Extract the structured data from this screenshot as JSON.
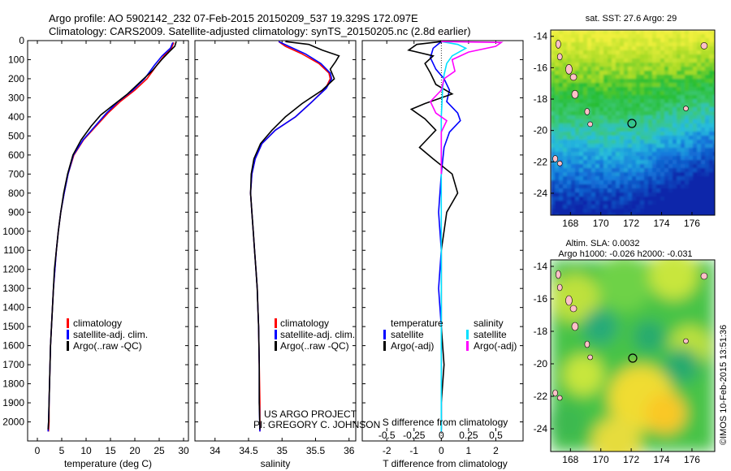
{
  "header": {
    "title_line1": "Argo profile: AO 5902142_232 07-Feb-2015 20150209_537 19.329S 172.097E",
    "title_line2": "Climatology: CARS2009. Satellite-adjusted climatology: synTS_20150205.nc (2.8d earlier)"
  },
  "side_texts": {
    "sst_label": "sat. SST: 27.6 Argo: 29",
    "sla_label1": "Altim. SLA: 0.0032",
    "sla_label2": "Argo h1000: -0.026 h2000: -0.031",
    "credit": "©IMOS 10-Feb-2015 13:51:36",
    "project_line1": "US ARGO PROJECT",
    "project_line2": "PI: GREGORY C. JOHNSON"
  },
  "colors": {
    "climatology": "#ff0000",
    "satellite": "#0000ff",
    "argo": "#000000",
    "salinity_satellite": "#00e0ff",
    "salinity_argo": "#ff00ff"
  },
  "chart_data": [
    {
      "type": "line",
      "xlabel": "temperature (deg C)",
      "ylabel": "",
      "xlim": [
        -2,
        31
      ],
      "ylim": [
        2100,
        0
      ],
      "xticks": [
        0,
        5,
        10,
        15,
        20,
        25,
        30
      ],
      "yticks": [
        0,
        100,
        200,
        300,
        400,
        500,
        600,
        700,
        800,
        900,
        1000,
        1100,
        1200,
        1300,
        1400,
        1500,
        1600,
        1700,
        1800,
        1900,
        2000
      ],
      "legend": [
        "climatology",
        "satellite-adj. clim.",
        "Argo(..raw -QC)"
      ],
      "series": [
        {
          "name": "climatology",
          "points": [
            [
              28,
              10
            ],
            [
              27.5,
              40
            ],
            [
              26,
              80
            ],
            [
              24.5,
              130
            ],
            [
              22.5,
              200
            ],
            [
              20,
              260
            ],
            [
              17,
              320
            ],
            [
              14.5,
              380
            ],
            [
              12,
              450
            ],
            [
              9.5,
              520
            ],
            [
              7.5,
              600
            ],
            [
              6.3,
              700
            ],
            [
              5.5,
              800
            ],
            [
              4.8,
              900
            ],
            [
              4.3,
              1000
            ],
            [
              3.9,
              1100
            ],
            [
              3.6,
              1200
            ],
            [
              3.3,
              1300
            ],
            [
              3.1,
              1400
            ],
            [
              2.9,
              1500
            ],
            [
              2.7,
              1600
            ],
            [
              2.6,
              1700
            ],
            [
              2.5,
              1800
            ],
            [
              2.4,
              1900
            ],
            [
              2.4,
              2000
            ],
            [
              2.3,
              2050
            ]
          ]
        },
        {
          "name": "satellite-adj. clim.",
          "points": [
            [
              27.8,
              10
            ],
            [
              27.3,
              40
            ],
            [
              25.6,
              80
            ],
            [
              24,
              130
            ],
            [
              22,
              200
            ],
            [
              19.6,
              260
            ],
            [
              16.6,
              320
            ],
            [
              14.2,
              380
            ],
            [
              11.8,
              450
            ],
            [
              9.4,
              520
            ],
            [
              7.4,
              600
            ],
            [
              6.3,
              700
            ],
            [
              5.5,
              800
            ],
            [
              4.8,
              900
            ],
            [
              4.3,
              1000
            ],
            [
              3.9,
              1100
            ],
            [
              3.6,
              1200
            ],
            [
              3.3,
              1300
            ],
            [
              3.1,
              1400
            ],
            [
              2.9,
              1500
            ],
            [
              2.7,
              1600
            ],
            [
              2.6,
              1700
            ],
            [
              2.5,
              1800
            ],
            [
              2.4,
              1900
            ],
            [
              2.3,
              2000
            ],
            [
              2.2,
              2050
            ]
          ]
        },
        {
          "name": "Argo(..raw -QC)",
          "points": [
            [
              28.5,
              5
            ],
            [
              28.2,
              30
            ],
            [
              27,
              60
            ],
            [
              25.5,
              100
            ],
            [
              23.5,
              160
            ],
            [
              21,
              220
            ],
            [
              18.5,
              280
            ],
            [
              15.5,
              340
            ],
            [
              13,
              390
            ],
            [
              11,
              450
            ],
            [
              9,
              520
            ],
            [
              7.3,
              600
            ],
            [
              6.2,
              700
            ],
            [
              5.4,
              800
            ],
            [
              4.8,
              900
            ],
            [
              4.3,
              1000
            ],
            [
              3.9,
              1100
            ],
            [
              3.5,
              1200
            ],
            [
              3.3,
              1300
            ],
            [
              3.1,
              1400
            ],
            [
              2.9,
              1500
            ],
            [
              2.7,
              1600
            ],
            [
              2.6,
              1700
            ],
            [
              2.5,
              1800
            ],
            [
              2.4,
              1900
            ],
            [
              2.3,
              2000
            ],
            [
              2.2,
              2040
            ]
          ]
        }
      ]
    },
    {
      "type": "line",
      "xlabel": "salinity",
      "xlim": [
        33.7,
        36.1
      ],
      "ylim": [
        2100,
        0
      ],
      "xticks": [
        34,
        34.5,
        35,
        35.5,
        36
      ],
      "legend": [
        "climatology",
        "satellite-adj. clim.",
        "Argo(..raw -QC)"
      ],
      "series": [
        {
          "name": "climatology",
          "points": [
            [
              34.95,
              5
            ],
            [
              35.05,
              30
            ],
            [
              35.3,
              70
            ],
            [
              35.55,
              120
            ],
            [
              35.7,
              170
            ],
            [
              35.72,
              200
            ],
            [
              35.65,
              250
            ],
            [
              35.45,
              320
            ],
            [
              35.2,
              400
            ],
            [
              34.9,
              470
            ],
            [
              34.7,
              540
            ],
            [
              34.6,
              620
            ],
            [
              34.55,
              700
            ],
            [
              34.53,
              800
            ],
            [
              34.55,
              900
            ],
            [
              34.57,
              1000
            ],
            [
              34.59,
              1100
            ],
            [
              34.61,
              1200
            ],
            [
              34.63,
              1300
            ],
            [
              34.64,
              1400
            ],
            [
              34.65,
              1500
            ],
            [
              34.66,
              1700
            ],
            [
              34.67,
              1900
            ],
            [
              34.67,
              2050
            ]
          ]
        },
        {
          "name": "satellite-adj. clim.",
          "points": [
            [
              34.95,
              5
            ],
            [
              35.1,
              30
            ],
            [
              35.35,
              70
            ],
            [
              35.58,
              120
            ],
            [
              35.72,
              170
            ],
            [
              35.74,
              200
            ],
            [
              35.66,
              250
            ],
            [
              35.45,
              320
            ],
            [
              35.2,
              400
            ],
            [
              34.9,
              470
            ],
            [
              34.7,
              540
            ],
            [
              34.6,
              620
            ],
            [
              34.55,
              700
            ],
            [
              34.53,
              800
            ],
            [
              34.55,
              900
            ],
            [
              34.57,
              1000
            ],
            [
              34.59,
              1100
            ],
            [
              34.61,
              1200
            ],
            [
              34.63,
              1300
            ],
            [
              34.64,
              1400
            ],
            [
              34.65,
              1500
            ],
            [
              34.66,
              1700
            ],
            [
              34.66,
              1900
            ],
            [
              34.67,
              2050
            ]
          ]
        },
        {
          "name": "Argo(..raw -QC)",
          "points": [
            [
              35.05,
              5
            ],
            [
              35.4,
              20
            ],
            [
              35.6,
              50
            ],
            [
              35.85,
              80
            ],
            [
              35.8,
              110
            ],
            [
              35.72,
              150
            ],
            [
              35.78,
              200
            ],
            [
              35.6,
              260
            ],
            [
              35.3,
              330
            ],
            [
              35.05,
              400
            ],
            [
              34.85,
              470
            ],
            [
              34.68,
              540
            ],
            [
              34.58,
              620
            ],
            [
              34.54,
              700
            ],
            [
              34.53,
              800
            ],
            [
              34.55,
              900
            ],
            [
              34.57,
              1000
            ],
            [
              34.59,
              1100
            ],
            [
              34.61,
              1200
            ],
            [
              34.63,
              1300
            ],
            [
              34.64,
              1400
            ],
            [
              34.65,
              1500
            ],
            [
              34.66,
              1700
            ],
            [
              34.66,
              1900
            ],
            [
              34.67,
              2040
            ]
          ]
        }
      ]
    },
    {
      "type": "line",
      "xlabel": "T difference from climatology",
      "xlabel_top": "S difference from climatology",
      "xlim": [
        -2.9,
        3.0
      ],
      "ylim": [
        2100,
        0
      ],
      "xticks": [
        -2,
        -1,
        0,
        1,
        2
      ],
      "xticklabels_s": [
        "-0.5",
        "-0.25",
        "0",
        "0.25",
        "0.5"
      ],
      "xticks_s": [
        -0.5,
        -0.25,
        0,
        0.25,
        0.5
      ],
      "legend_titles": [
        "temperature",
        "salinity"
      ],
      "legend": [
        "satellite",
        "Argo(-adj)",
        "satellite",
        "Argo(-adj)"
      ],
      "series": [
        {
          "name": "satellite",
          "group": "temperature",
          "points": [
            [
              0,
              5
            ],
            [
              -0.3,
              40
            ],
            [
              -0.4,
              90
            ],
            [
              -0.2,
              150
            ],
            [
              0.1,
              200
            ],
            [
              0.3,
              260
            ],
            [
              0.2,
              320
            ],
            [
              0.6,
              380
            ],
            [
              0.7,
              420
            ],
            [
              0.3,
              480
            ],
            [
              0.1,
              560
            ],
            [
              0,
              700
            ],
            [
              -0.1,
              900
            ],
            [
              0,
              1100
            ],
            [
              -0.1,
              1300
            ],
            [
              0,
              1500
            ],
            [
              0,
              1700
            ],
            [
              0,
              1900
            ],
            [
              0,
              2050
            ]
          ]
        },
        {
          "name": "Argo(-adj)",
          "group": "temperature",
          "points": [
            [
              0,
              5
            ],
            [
              -0.9,
              20
            ],
            [
              -1.2,
              50
            ],
            [
              -0.3,
              80
            ],
            [
              -0.6,
              120
            ],
            [
              -0.4,
              170
            ],
            [
              -0.2,
              230
            ],
            [
              0.4,
              280
            ],
            [
              -0.6,
              330
            ],
            [
              -1.1,
              360
            ],
            [
              -0.6,
              410
            ],
            [
              -0.2,
              470
            ],
            [
              -0.8,
              560
            ],
            [
              -0.3,
              620
            ],
            [
              0.4,
              700
            ],
            [
              0.6,
              800
            ],
            [
              0.2,
              900
            ],
            [
              0.1,
              1000
            ],
            [
              0,
              1100
            ],
            [
              0,
              1300
            ],
            [
              0,
              1500
            ],
            [
              0.1,
              1700
            ],
            [
              0,
              1900
            ],
            [
              0,
              2040
            ]
          ]
        },
        {
          "name": "satellite",
          "group": "salinity",
          "points": [
            [
              0,
              5
            ],
            [
              0.6,
              20
            ],
            [
              0.9,
              40
            ],
            [
              0.4,
              80
            ],
            [
              0.2,
              120
            ],
            [
              0.1,
              180
            ],
            [
              0.05,
              250
            ],
            [
              0,
              400
            ],
            [
              0,
              600
            ],
            [
              0,
              800
            ],
            [
              0,
              1000
            ],
            [
              0,
              1200
            ],
            [
              0,
              1400
            ],
            [
              0,
              1600
            ],
            [
              0,
              1800
            ],
            [
              0,
              2000
            ],
            [
              0,
              2050
            ]
          ]
        },
        {
          "name": "Argo(-adj)",
          "group": "salinity",
          "points": [
            [
              0,
              5
            ],
            [
              2.2,
              10
            ],
            [
              2.0,
              30
            ],
            [
              1.0,
              60
            ],
            [
              0.4,
              100
            ],
            [
              0.5,
              160
            ],
            [
              0.1,
              200
            ],
            [
              0,
              260
            ],
            [
              -0.4,
              320
            ],
            [
              -0.2,
              380
            ],
            [
              0.2,
              420
            ],
            [
              0,
              480
            ],
            [
              0,
              600
            ],
            [
              0,
              700
            ]
          ]
        }
      ]
    },
    {
      "type": "heatmap",
      "title": "sat. SST: 27.6 Argo: 29",
      "xlim": [
        166.7,
        177.5
      ],
      "ylim": [
        -25.4,
        -13.6
      ],
      "xticks": [
        168,
        170,
        172,
        174,
        176
      ],
      "yticks": [
        -14,
        -16,
        -18,
        -20,
        -22,
        -24
      ],
      "marker": [
        172.1,
        -19.3
      ]
    },
    {
      "type": "heatmap",
      "title": "Altim. SLA: 0.0032",
      "xlim": [
        166.7,
        177.5
      ],
      "ylim": [
        -25.4,
        -13.6
      ],
      "xticks": [
        168,
        170,
        172,
        174,
        176
      ],
      "yticks": [
        -14,
        -16,
        -18,
        -20,
        -22,
        -24
      ],
      "marker": [
        172.1,
        -19.3
      ]
    }
  ]
}
